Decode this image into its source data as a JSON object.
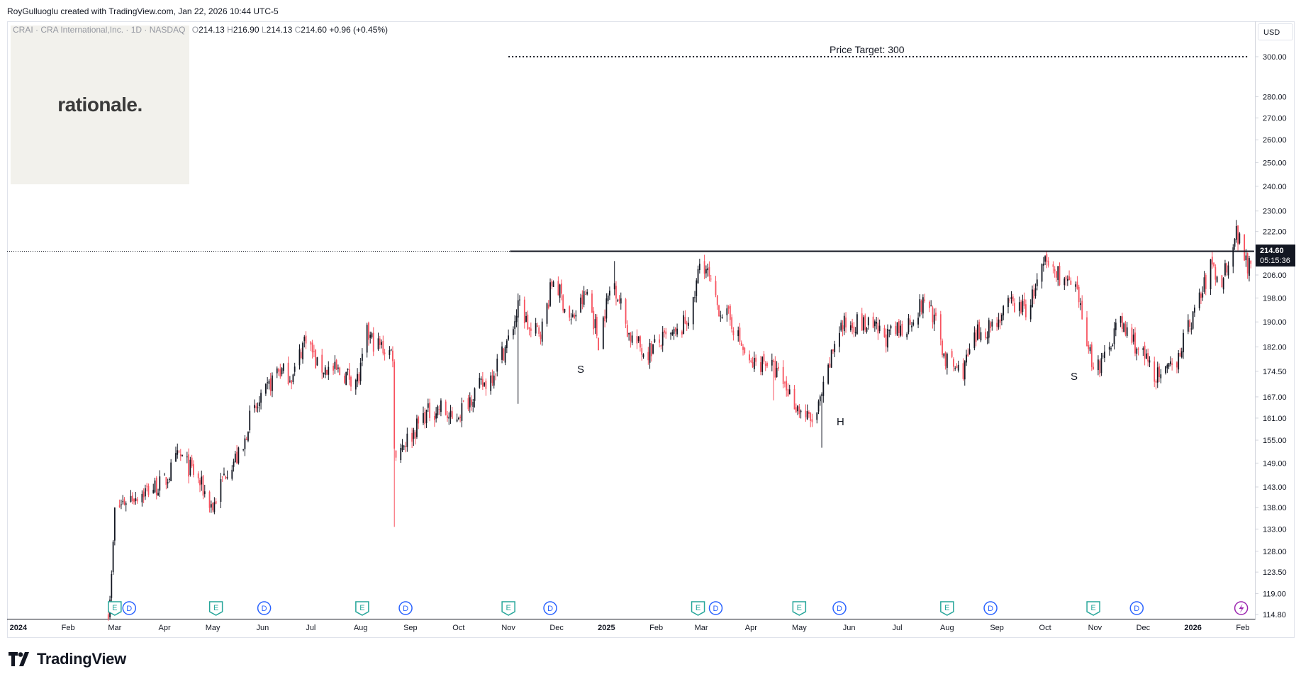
{
  "credit": "RoyGulluoglu created with TradingView.com, Jan 22, 2026 10:44 UTC-5",
  "legend": {
    "symbol": "CRAI · CRA International,Inc. · 1D · NASDAQ",
    "o_label": "O",
    "o_value": "214.13",
    "h_label": "H",
    "h_value": "216.90",
    "l_label": "L",
    "l_value": "214.13",
    "c_label": "C",
    "c_value": "214.60",
    "change": "+0.96 (+0.45%)"
  },
  "logo": {
    "text": "rationale."
  },
  "currency": "USD",
  "last_price": {
    "value": "214.60",
    "countdown": "05:15:36"
  },
  "annotations": {
    "price_target_label": "Price Target: 300",
    "pattern_left_shoulder": "S",
    "pattern_head": "H",
    "pattern_right_shoulder": "S"
  },
  "brand": {
    "name": "TradingView",
    "icon": "tradingview-logo-icon"
  },
  "colors": {
    "up": "#131722",
    "down": "#f7525f",
    "earnings": "#26a69a",
    "dividend": "#2962ff",
    "split": "#9c27b0"
  },
  "chart_data": {
    "type": "candlestick",
    "y_scale": "log",
    "ylim": [
      114.8,
      312
    ],
    "yticks": [
      "300.00",
      "280.00",
      "270.00",
      "260.00",
      "250.00",
      "240.00",
      "230.00",
      "222.00",
      "206.00",
      "198.00",
      "190.00",
      "182.00",
      "174.50",
      "167.00",
      "161.00",
      "155.00",
      "149.00",
      "143.00",
      "138.00",
      "133.00",
      "128.00",
      "123.50",
      "119.00",
      "114.80"
    ],
    "xlim": [
      "2023-12-25",
      "2026-02-09"
    ],
    "xticks": [
      {
        "date": "2024-01-01",
        "label": "2024",
        "bold": true
      },
      {
        "date": "2024-02-01",
        "label": "Feb"
      },
      {
        "date": "2024-03-01",
        "label": "Mar"
      },
      {
        "date": "2024-04-01",
        "label": "Apr"
      },
      {
        "date": "2024-05-01",
        "label": "May"
      },
      {
        "date": "2024-06-01",
        "label": "Jun"
      },
      {
        "date": "2024-07-01",
        "label": "Jul"
      },
      {
        "date": "2024-08-01",
        "label": "Aug"
      },
      {
        "date": "2024-09-01",
        "label": "Sep"
      },
      {
        "date": "2024-10-01",
        "label": "Oct"
      },
      {
        "date": "2024-11-01",
        "label": "Nov"
      },
      {
        "date": "2024-12-01",
        "label": "Dec"
      },
      {
        "date": "2025-01-01",
        "label": "2025",
        "bold": true
      },
      {
        "date": "2025-02-01",
        "label": "Feb"
      },
      {
        "date": "2025-03-01",
        "label": "Mar"
      },
      {
        "date": "2025-04-01",
        "label": "Apr"
      },
      {
        "date": "2025-05-01",
        "label": "May"
      },
      {
        "date": "2025-06-01",
        "label": "Jun"
      },
      {
        "date": "2025-07-01",
        "label": "Jul"
      },
      {
        "date": "2025-08-01",
        "label": "Aug"
      },
      {
        "date": "2025-09-01",
        "label": "Sep"
      },
      {
        "date": "2025-10-01",
        "label": "Oct"
      },
      {
        "date": "2025-11-01",
        "label": "Nov"
      },
      {
        "date": "2025-12-01",
        "label": "Dec"
      },
      {
        "date": "2026-01-01",
        "label": "2026",
        "bold": true
      },
      {
        "date": "2026-02-01",
        "label": "Feb"
      }
    ],
    "price_anchors": [
      [
        "2024-02-26",
        116
      ],
      [
        "2024-02-28",
        122
      ],
      [
        "2024-03-01",
        137
      ],
      [
        "2024-03-08",
        140
      ],
      [
        "2024-03-20",
        142
      ],
      [
        "2024-04-01",
        144
      ],
      [
        "2024-04-10",
        151
      ],
      [
        "2024-04-20",
        146
      ],
      [
        "2024-05-01",
        138
      ],
      [
        "2024-05-10",
        148
      ],
      [
        "2024-05-20",
        152
      ],
      [
        "2024-05-23",
        160
      ],
      [
        "2024-06-01",
        166
      ],
      [
        "2024-06-10",
        175
      ],
      [
        "2024-06-20",
        173
      ],
      [
        "2024-06-28",
        186
      ],
      [
        "2024-07-05",
        176
      ],
      [
        "2024-07-20",
        174
      ],
      [
        "2024-07-31",
        172
      ],
      [
        "2024-08-05",
        186
      ],
      [
        "2024-08-10",
        183
      ],
      [
        "2024-08-21",
        180
      ],
      [
        "2024-08-22",
        152
      ],
      [
        "2024-09-01",
        156
      ],
      [
        "2024-09-10",
        162
      ],
      [
        "2024-09-20",
        164
      ],
      [
        "2024-09-27",
        160
      ],
      [
        "2024-10-10",
        168
      ],
      [
        "2024-10-20",
        172
      ],
      [
        "2024-11-01",
        184
      ],
      [
        "2024-11-08",
        196
      ],
      [
        "2024-11-15",
        186
      ],
      [
        "2024-11-22",
        188
      ],
      [
        "2024-11-29",
        205
      ],
      [
        "2024-12-10",
        190
      ],
      [
        "2024-12-20",
        200
      ],
      [
        "2024-12-27",
        184
      ],
      [
        "2025-01-05",
        205
      ],
      [
        "2025-01-15",
        186
      ],
      [
        "2025-01-25",
        180
      ],
      [
        "2025-02-05",
        184
      ],
      [
        "2025-02-15",
        186
      ],
      [
        "2025-02-24",
        195
      ],
      [
        "2025-03-01",
        214
      ],
      [
        "2025-03-10",
        196
      ],
      [
        "2025-03-20",
        190
      ],
      [
        "2025-03-31",
        176
      ],
      [
        "2025-04-10",
        178
      ],
      [
        "2025-04-20",
        172
      ],
      [
        "2025-04-30",
        164
      ],
      [
        "2025-05-08",
        160
      ],
      [
        "2025-05-12",
        162
      ],
      [
        "2025-05-18",
        172
      ],
      [
        "2025-05-25",
        188
      ],
      [
        "2025-06-05",
        190
      ],
      [
        "2025-06-15",
        188
      ],
      [
        "2025-06-25",
        185
      ],
      [
        "2025-07-05",
        188
      ],
      [
        "2025-07-20",
        198
      ],
      [
        "2025-07-31",
        178
      ],
      [
        "2025-08-10",
        174
      ],
      [
        "2025-08-20",
        186
      ],
      [
        "2025-08-31",
        190
      ],
      [
        "2025-09-10",
        196
      ],
      [
        "2025-09-20",
        194
      ],
      [
        "2025-10-01",
        210
      ],
      [
        "2025-10-10",
        206
      ],
      [
        "2025-10-20",
        200
      ],
      [
        "2025-10-30",
        178
      ],
      [
        "2025-11-05",
        176
      ],
      [
        "2025-11-15",
        190
      ],
      [
        "2025-11-22",
        186
      ],
      [
        "2025-12-05",
        176
      ],
      [
        "2025-12-12",
        172
      ],
      [
        "2025-12-20",
        176
      ],
      [
        "2026-01-01",
        192
      ],
      [
        "2026-01-08",
        202
      ],
      [
        "2026-01-12",
        210
      ],
      [
        "2026-01-15",
        206
      ],
      [
        "2026-01-19",
        204
      ],
      [
        "2026-01-23",
        212
      ],
      [
        "2026-01-28",
        222
      ],
      [
        "2026-02-02",
        214
      ],
      [
        "2026-02-04",
        210
      ],
      [
        "2026-02-07",
        214.6
      ]
    ],
    "spikes": [
      [
        "2024-08-22",
        133.5,
        "low"
      ],
      [
        "2024-11-07",
        165,
        "low"
      ],
      [
        "2025-03-01",
        216,
        "high"
      ],
      [
        "2025-05-15",
        153,
        "low"
      ],
      [
        "2024-06-28",
        187,
        "high"
      ],
      [
        "2025-01-06",
        211,
        "high"
      ],
      [
        "2025-04-15",
        166,
        "low"
      ],
      [
        "2026-01-29",
        223,
        "high"
      ]
    ],
    "resistance": {
      "value": 214.6,
      "from": "2024-11-02",
      "to": "2026-02-08"
    },
    "last_price": 214.6,
    "price_target": {
      "value": 300,
      "from": "2024-11-01",
      "to": "2026-02-05"
    },
    "events": [
      {
        "date": "2024-03-01",
        "type": "E"
      },
      {
        "date": "2024-03-10",
        "type": "D"
      },
      {
        "date": "2024-05-03",
        "type": "E"
      },
      {
        "date": "2024-06-02",
        "type": "D"
      },
      {
        "date": "2024-08-02",
        "type": "E"
      },
      {
        "date": "2024-08-29",
        "type": "D"
      },
      {
        "date": "2024-11-01",
        "type": "E"
      },
      {
        "date": "2024-11-27",
        "type": "D"
      },
      {
        "date": "2025-02-27",
        "type": "E"
      },
      {
        "date": "2025-03-10",
        "type": "D"
      },
      {
        "date": "2025-05-01",
        "type": "E"
      },
      {
        "date": "2025-05-26",
        "type": "D"
      },
      {
        "date": "2025-08-01",
        "type": "E"
      },
      {
        "date": "2025-08-28",
        "type": "D"
      },
      {
        "date": "2025-10-31",
        "type": "E"
      },
      {
        "date": "2025-11-27",
        "type": "D"
      },
      {
        "date": "2026-01-31",
        "type": "split"
      }
    ]
  }
}
